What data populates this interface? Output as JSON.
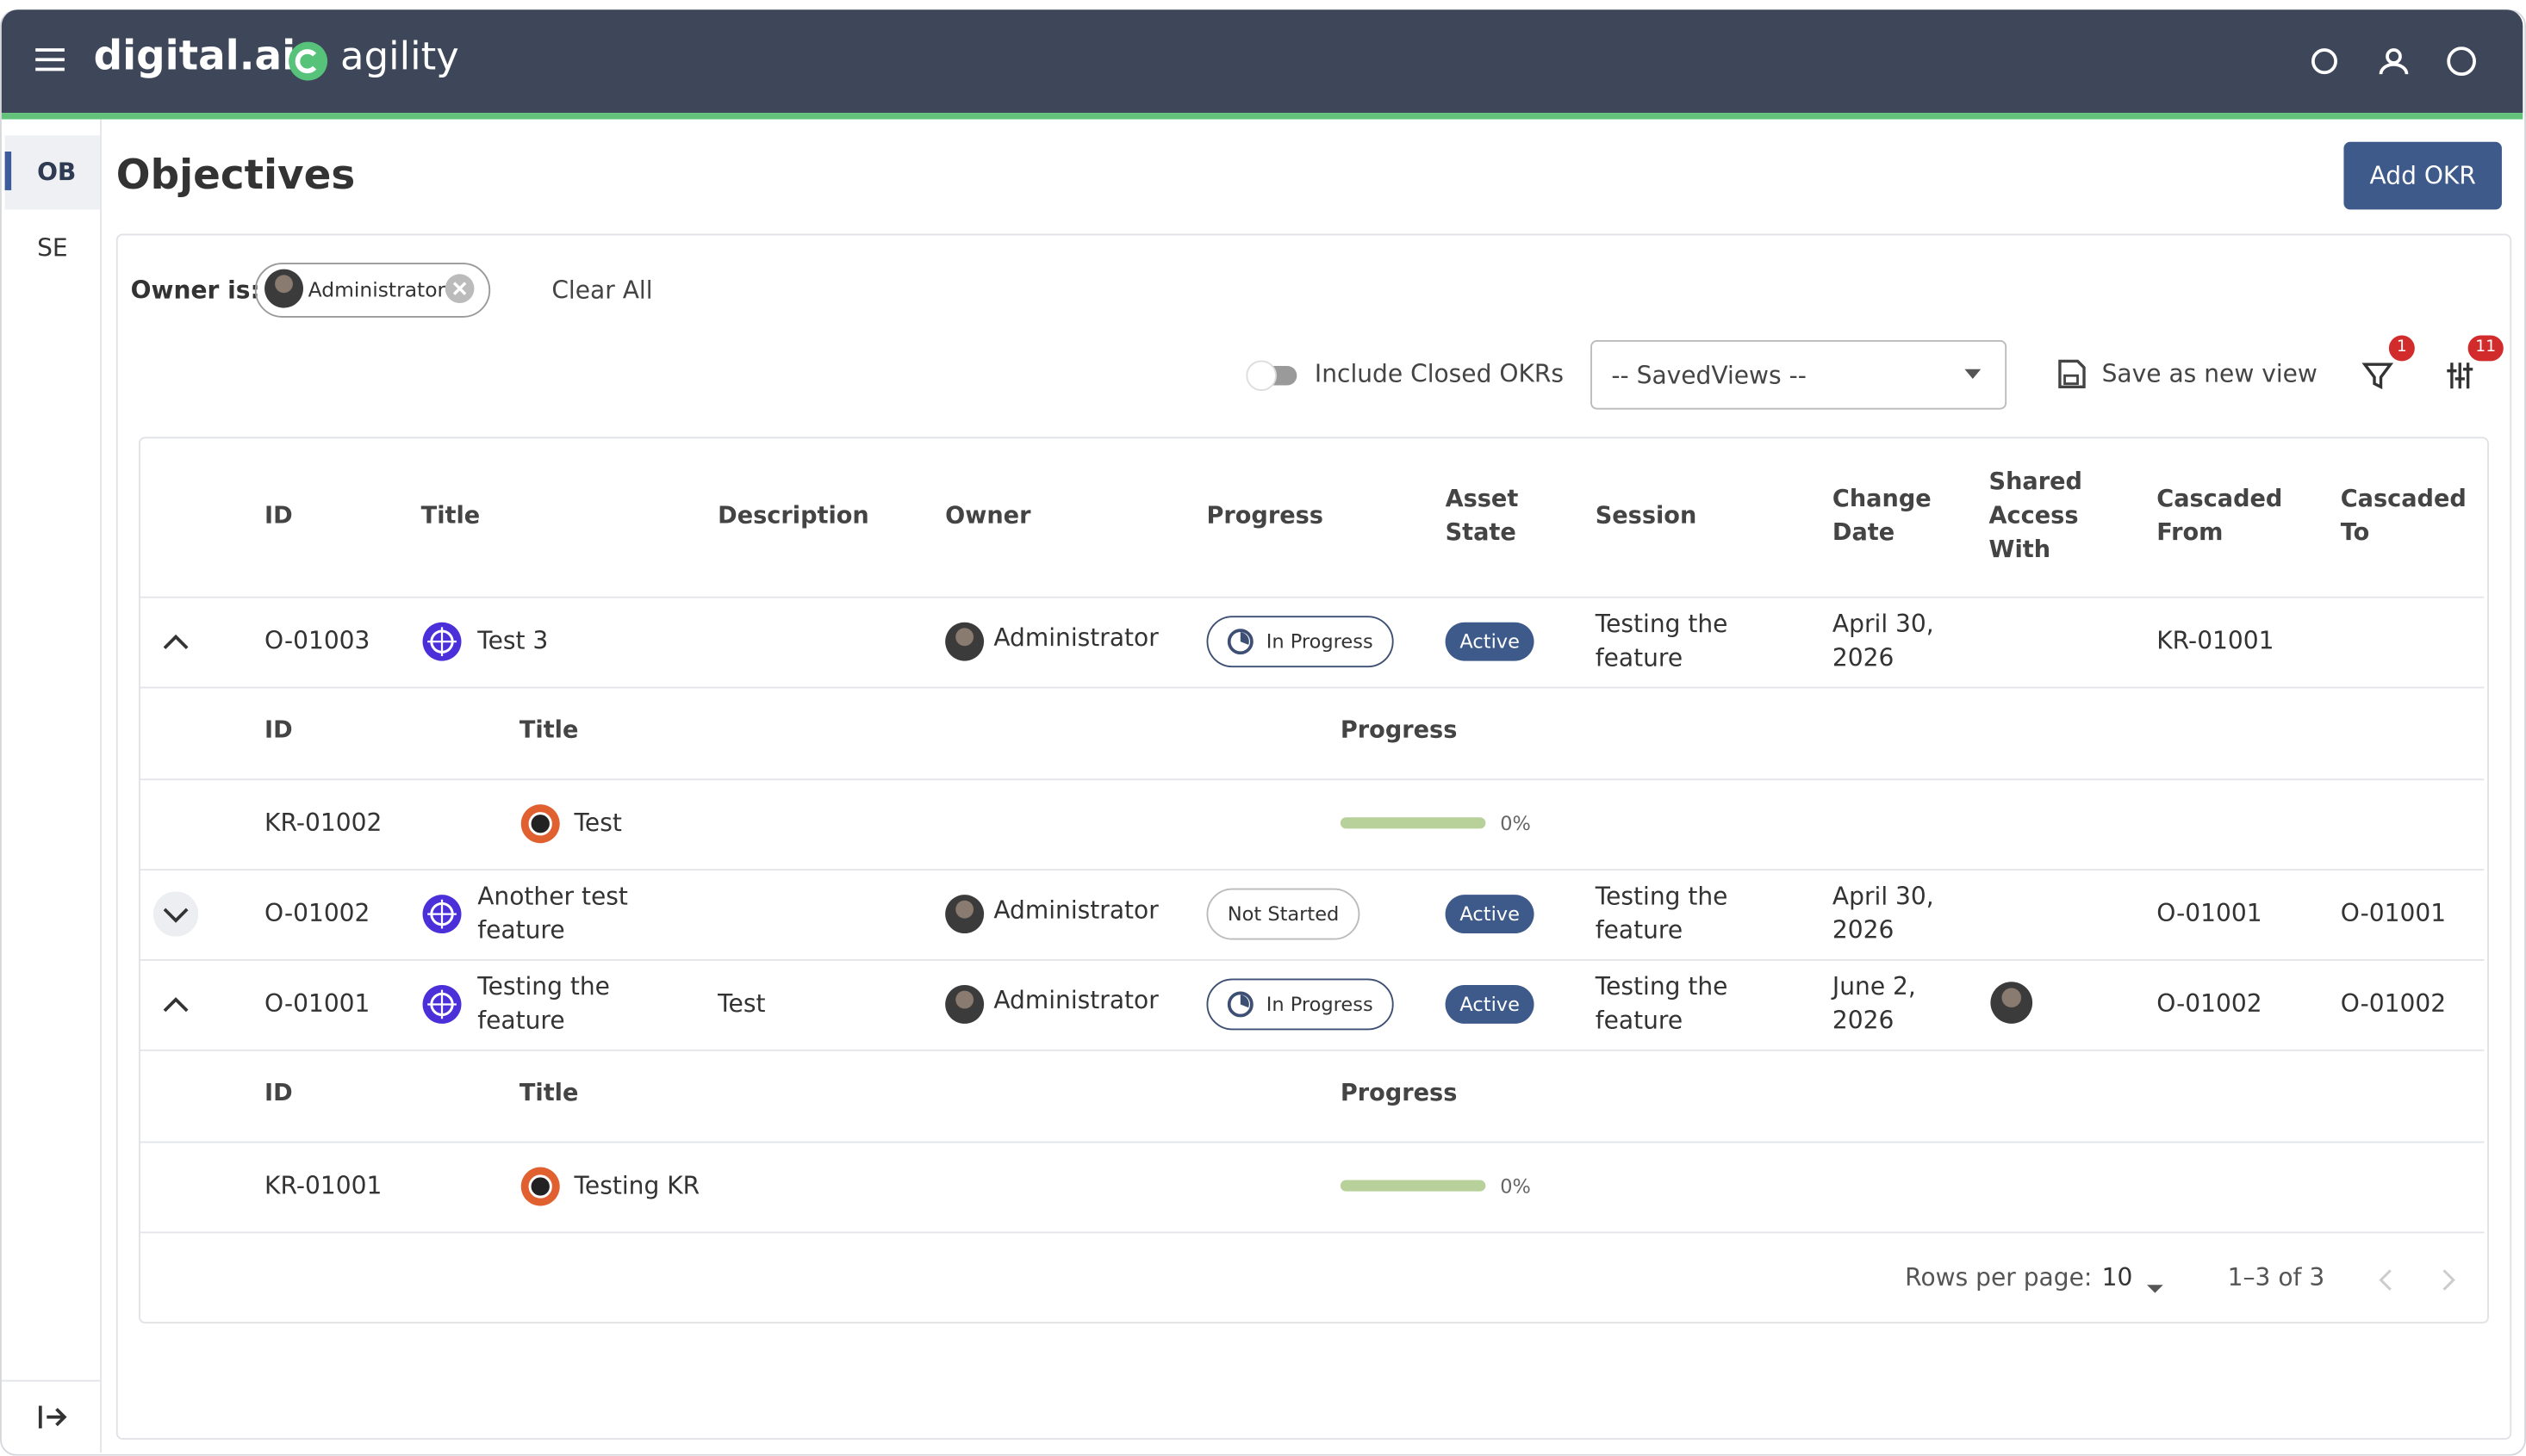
{
  "header": {
    "brand": "digital.ai",
    "product": "agility"
  },
  "sidebar": {
    "items": [
      "OB",
      "SE"
    ]
  },
  "page": {
    "title": "Objectives",
    "add_button": "Add OKR"
  },
  "filters": {
    "owner_label": "Owner is:",
    "owner_chip": "Administrator",
    "clear": "Clear All",
    "include_closed": "Include Closed OKRs",
    "saved_views": "-- SavedViews --",
    "save_view": "Save as new view",
    "filter_badge": "1",
    "columns_badge": "11"
  },
  "table": {
    "columns": [
      "ID",
      "Title",
      "Description",
      "Owner",
      "Progress",
      "Asset State",
      "Session",
      "Change Date",
      "Shared Access With",
      "Cascaded From",
      "Cascaded To"
    ],
    "child_columns": [
      "ID",
      "Title",
      "Progress"
    ],
    "rows": [
      {
        "id": "O-01003",
        "title": "Test 3",
        "owner": "Administrator",
        "progress": "In Progress",
        "state": "Active",
        "session": "Testing the feature",
        "change_date": "April 30, 2026",
        "cascaded_from": "KR-01001",
        "expanded": true,
        "children": [
          {
            "id": "KR-01002",
            "title": "Test",
            "progress": "0%"
          }
        ]
      },
      {
        "id": "O-01002",
        "title": "Another test feature",
        "owner": "Administrator",
        "progress": "Not Started",
        "state": "Active",
        "session": "Testing the feature",
        "change_date": "April 30, 2026",
        "cascaded_from": "O-01001",
        "cascaded_to": "O-01001",
        "expanded": false
      },
      {
        "id": "O-01001",
        "title": "Testing the feature",
        "description": "Test",
        "owner": "Administrator",
        "progress": "In Progress",
        "state": "Active",
        "session": "Testing the feature",
        "change_date": "June 2, 2026",
        "shared_access": true,
        "cascaded_from": "O-01002",
        "cascaded_to": "O-01002",
        "expanded": true,
        "children": [
          {
            "id": "KR-01001",
            "title": "Testing KR",
            "progress": "0%"
          }
        ]
      }
    ],
    "pagination": {
      "rows_label": "Rows per page:",
      "rows_value": "10",
      "range": "1–3 of 3"
    }
  }
}
